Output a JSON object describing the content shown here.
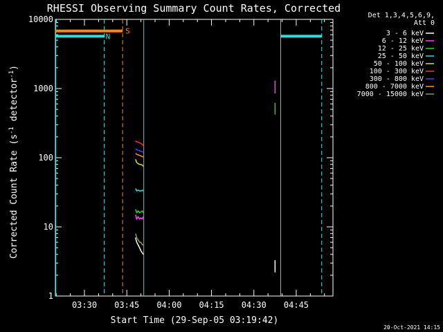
{
  "chart_data": {
    "type": "line",
    "title": "RHESSI Observing Summary Count Rates, Corrected",
    "xlabel": "Start Time (29-Sep-05 03:19:42)",
    "ylabel": "Corrected Count Rate (s^-1 detector^-1)",
    "ylabel_parts": [
      "Corrected Count Rate (s",
      "-1",
      " detector",
      "-1",
      ")"
    ],
    "y_scale": "log",
    "ylim": [
      1,
      10000
    ],
    "y_ticks": [
      1,
      10,
      100,
      1000,
      10000
    ],
    "y_tick_labels": [
      "1",
      "10",
      "100",
      "1000",
      "10000"
    ],
    "xlim": [
      "03:19:42",
      "04:58:00"
    ],
    "x_ticks": [
      "03:30",
      "03:45",
      "04:00",
      "04:15",
      "04:30",
      "04:45"
    ],
    "grid": false,
    "legend_position": "right",
    "legend_header": [
      "Det 1,3,4,5,6,9,",
      "Att 0"
    ],
    "series": [
      {
        "name": "3 - 6 keV",
        "color": "#ffffff",
        "x": [
          "03:48:05",
          "03:48:30",
          "03:49:00",
          "03:49:30",
          "03:50:00",
          "03:50:30",
          "03:50:50"
        ],
        "values": [
          7,
          6,
          5.5,
          5,
          4.5,
          4.2,
          4
        ]
      },
      {
        "name": "6 - 12 keV",
        "color": "#ff44ff",
        "x": [
          "03:48:05",
          "03:48:30",
          "03:49:00",
          "03:49:30",
          "03:50:00",
          "03:50:30",
          "03:50:50"
        ],
        "values": [
          15,
          13,
          14,
          13,
          13.5,
          13,
          14
        ]
      },
      {
        "name": "12 - 25 keV",
        "color": "#33cc33",
        "x": [
          "03:48:05",
          "03:48:30",
          "03:49:00",
          "03:49:30",
          "03:50:00",
          "03:50:30",
          "03:50:50"
        ],
        "values": [
          18,
          16,
          17,
          16,
          16.5,
          17,
          16
        ]
      },
      {
        "name": "25 - 50 keV",
        "color": "#33dddd",
        "x": [
          "03:48:05",
          "03:48:30",
          "03:49:00",
          "03:49:30",
          "03:50:00",
          "03:50:30",
          "03:50:50"
        ],
        "values": [
          36,
          33,
          34,
          33,
          33,
          34,
          33
        ]
      },
      {
        "name": "50 - 100 keV",
        "color": "#dddd33",
        "x": [
          "03:48:05",
          "03:48:30",
          "03:49:00",
          "03:49:30",
          "03:50:00",
          "03:50:30",
          "03:50:50"
        ],
        "values": [
          95,
          85,
          82,
          80,
          80,
          78,
          75
        ]
      },
      {
        "name": "100 - 300 keV",
        "color": "#ff3333",
        "x": [
          "03:48:05",
          "03:48:30",
          "03:49:00",
          "03:49:30",
          "03:50:00",
          "03:50:30",
          "03:50:50"
        ],
        "values": [
          175,
          170,
          168,
          165,
          160,
          155,
          150
        ]
      },
      {
        "name": "300 - 800 keV",
        "color": "#4444ff",
        "x": [
          "03:48:05",
          "03:48:30",
          "03:49:00",
          "03:49:30",
          "03:50:00",
          "03:50:30",
          "03:50:50"
        ],
        "values": [
          135,
          130,
          128,
          126,
          124,
          122,
          120
        ]
      },
      {
        "name": "800 - 7000 keV",
        "color": "#ff9933",
        "x": [
          "03:48:05",
          "03:48:30",
          "03:49:00",
          "03:49:30",
          "03:50:00",
          "03:50:30",
          "03:50:50"
        ],
        "values": [
          115,
          112,
          110,
          108,
          106,
          104,
          102
        ]
      },
      {
        "name": "7000 - 15000 keV",
        "color": "#999933",
        "x": [
          "03:48:05",
          "03:48:30",
          "03:49:00",
          "03:49:30",
          "03:50:00",
          "03:50:30",
          "03:50:50"
        ],
        "values": [
          8,
          7,
          6.5,
          6,
          6,
          5.5,
          5.5
        ]
      }
    ],
    "flag_bars": [
      {
        "label": "N",
        "color": "#33dddd",
        "value": 5700,
        "start": "03:19:42",
        "end": "03:37:00",
        "label_at": "03:37:30"
      },
      {
        "label": "",
        "color": "#33dddd",
        "value": 5700,
        "start": "04:39:30",
        "end": "04:54:00",
        "label_at": ""
      },
      {
        "label": "S",
        "color": "#ff8800",
        "value": 6800,
        "start": "03:19:42",
        "end": "03:43:30",
        "label_at": "03:44:30"
      }
    ],
    "vertical_lines": [
      {
        "time": "03:19:50",
        "color": "#33dddd",
        "style": "solid"
      },
      {
        "time": "03:37:00",
        "color": "#33dddd",
        "style": "dashed"
      },
      {
        "time": "03:43:30",
        "color": "#ff8800",
        "style": "dashed"
      },
      {
        "time": "03:51:00",
        "color": "#33dddd",
        "style": "solid"
      },
      {
        "time": "04:39:30",
        "color": "#33dddd",
        "style": "solid"
      },
      {
        "time": "04:54:00",
        "color": "#33dddd",
        "style": "dashed"
      }
    ],
    "ticks_marks": [
      {
        "time": "04:37:30",
        "color": "#ff44ff",
        "low": 850,
        "high": 1300
      },
      {
        "time": "04:37:30",
        "color": "#33cc33",
        "low": 420,
        "high": 620
      },
      {
        "time": "04:37:30",
        "color": "#ffffff",
        "low": 2.2,
        "high": 3.3
      }
    ],
    "footer_stamp": "20-Oct-2021 14:15"
  }
}
